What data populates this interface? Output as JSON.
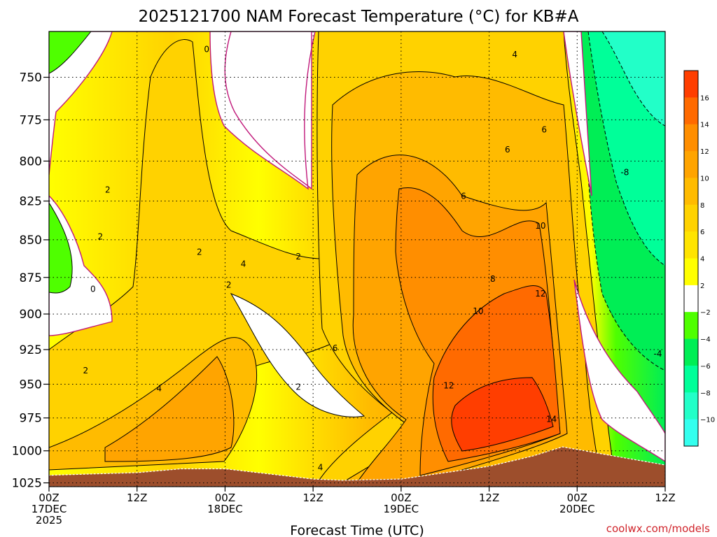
{
  "chart_data": {
    "type": "heatmap",
    "title": "2025121700 NAM Forecast Temperature (°C) for KB#A",
    "xlabel": "Forecast Time (UTC)",
    "ylabel": "",
    "credit": "coolwx.com/models",
    "x_ticks": [
      {
        "line1": "00Z",
        "line2": "17DEC",
        "line3": "2025",
        "hours": 0
      },
      {
        "line1": "12Z",
        "line2": "",
        "line3": "",
        "hours": 12
      },
      {
        "line1": "00Z",
        "line2": "18DEC",
        "line3": "",
        "hours": 24
      },
      {
        "line1": "12Z",
        "line2": "",
        "line3": "",
        "hours": 36
      },
      {
        "line1": "00Z",
        "line2": "19DEC",
        "line3": "",
        "hours": 48
      },
      {
        "line1": "12Z",
        "line2": "",
        "line3": "",
        "hours": 60
      },
      {
        "line1": "00Z",
        "line2": "20DEC",
        "line3": "",
        "hours": 72
      },
      {
        "line1": "12Z",
        "line2": "",
        "line3": "",
        "hours": 84
      }
    ],
    "xlim": [
      0,
      84
    ],
    "y_ticks": [
      750,
      775,
      800,
      825,
      850,
      875,
      900,
      925,
      950,
      975,
      1000,
      1025
    ],
    "ylim": [
      1028,
      724
    ],
    "y_scale": "log-pressure (hPa)",
    "grid": true,
    "colorbar": {
      "labels": [
        16,
        14,
        12,
        10,
        8,
        6,
        4,
        2,
        -2,
        -4,
        -6,
        -8,
        -10
      ],
      "colors": [
        "#ff3e00",
        "#ff6a00",
        "#ff8e00",
        "#ffa400",
        "#ffbb00",
        "#ffd200",
        "#ffe400",
        "#ffff00",
        "#ffffff",
        "#4fff00",
        "#00ee55",
        "#00ff99",
        "#22ffc8",
        "#33ffee"
      ]
    },
    "terrain_color": "#9d4e2c",
    "terrain_surface_pressure": [
      {
        "hours": 0,
        "p": 1019
      },
      {
        "hours": 6,
        "p": 1018
      },
      {
        "hours": 12,
        "p": 1017
      },
      {
        "hours": 18,
        "p": 1014
      },
      {
        "hours": 24,
        "p": 1014
      },
      {
        "hours": 30,
        "p": 1018
      },
      {
        "hours": 36,
        "p": 1022
      },
      {
        "hours": 40,
        "p": 1023
      },
      {
        "hours": 48,
        "p": 1022
      },
      {
        "hours": 54,
        "p": 1017
      },
      {
        "hours": 60,
        "p": 1012
      },
      {
        "hours": 66,
        "p": 1004
      },
      {
        "hours": 70,
        "p": 997
      },
      {
        "hours": 76,
        "p": 1003
      },
      {
        "hours": 84,
        "p": 1011
      }
    ],
    "contour_labels": [
      {
        "text": "0",
        "hours": 21.5,
        "p": 734
      },
      {
        "text": "4",
        "hours": 63.5,
        "p": 737
      },
      {
        "text": "2",
        "hours": 8,
        "p": 818
      },
      {
        "text": "6",
        "hours": 62.5,
        "p": 793
      },
      {
        "text": "6",
        "hours": 67.5,
        "p": 781
      },
      {
        "text": "-8",
        "hours": 78.5,
        "p": 807
      },
      {
        "text": "6",
        "hours": 56.5,
        "p": 822
      },
      {
        "text": "2",
        "hours": 7,
        "p": 848
      },
      {
        "text": "10",
        "hours": 67,
        "p": 841
      },
      {
        "text": "2",
        "hours": 20.5,
        "p": 858
      },
      {
        "text": "4",
        "hours": 26.5,
        "p": 866
      },
      {
        "text": "2",
        "hours": 34,
        "p": 861
      },
      {
        "text": "8",
        "hours": 60.5,
        "p": 876
      },
      {
        "text": "2",
        "hours": 24.5,
        "p": 880
      },
      {
        "text": "0",
        "hours": 6,
        "p": 883
      },
      {
        "text": "12",
        "hours": 67,
        "p": 886
      },
      {
        "text": "10",
        "hours": 58.5,
        "p": 898
      },
      {
        "text": "6",
        "hours": 39,
        "p": 924
      },
      {
        "text": "-4",
        "hours": 83,
        "p": 928
      },
      {
        "text": "2",
        "hours": 5,
        "p": 940
      },
      {
        "text": "4",
        "hours": 15,
        "p": 953
      },
      {
        "text": "12",
        "hours": 54.5,
        "p": 951
      },
      {
        "text": "2",
        "hours": 34,
        "p": 952
      },
      {
        "text": "14",
        "hours": 68.5,
        "p": 976
      },
      {
        "text": "4",
        "hours": 37,
        "p": 1013
      }
    ]
  }
}
